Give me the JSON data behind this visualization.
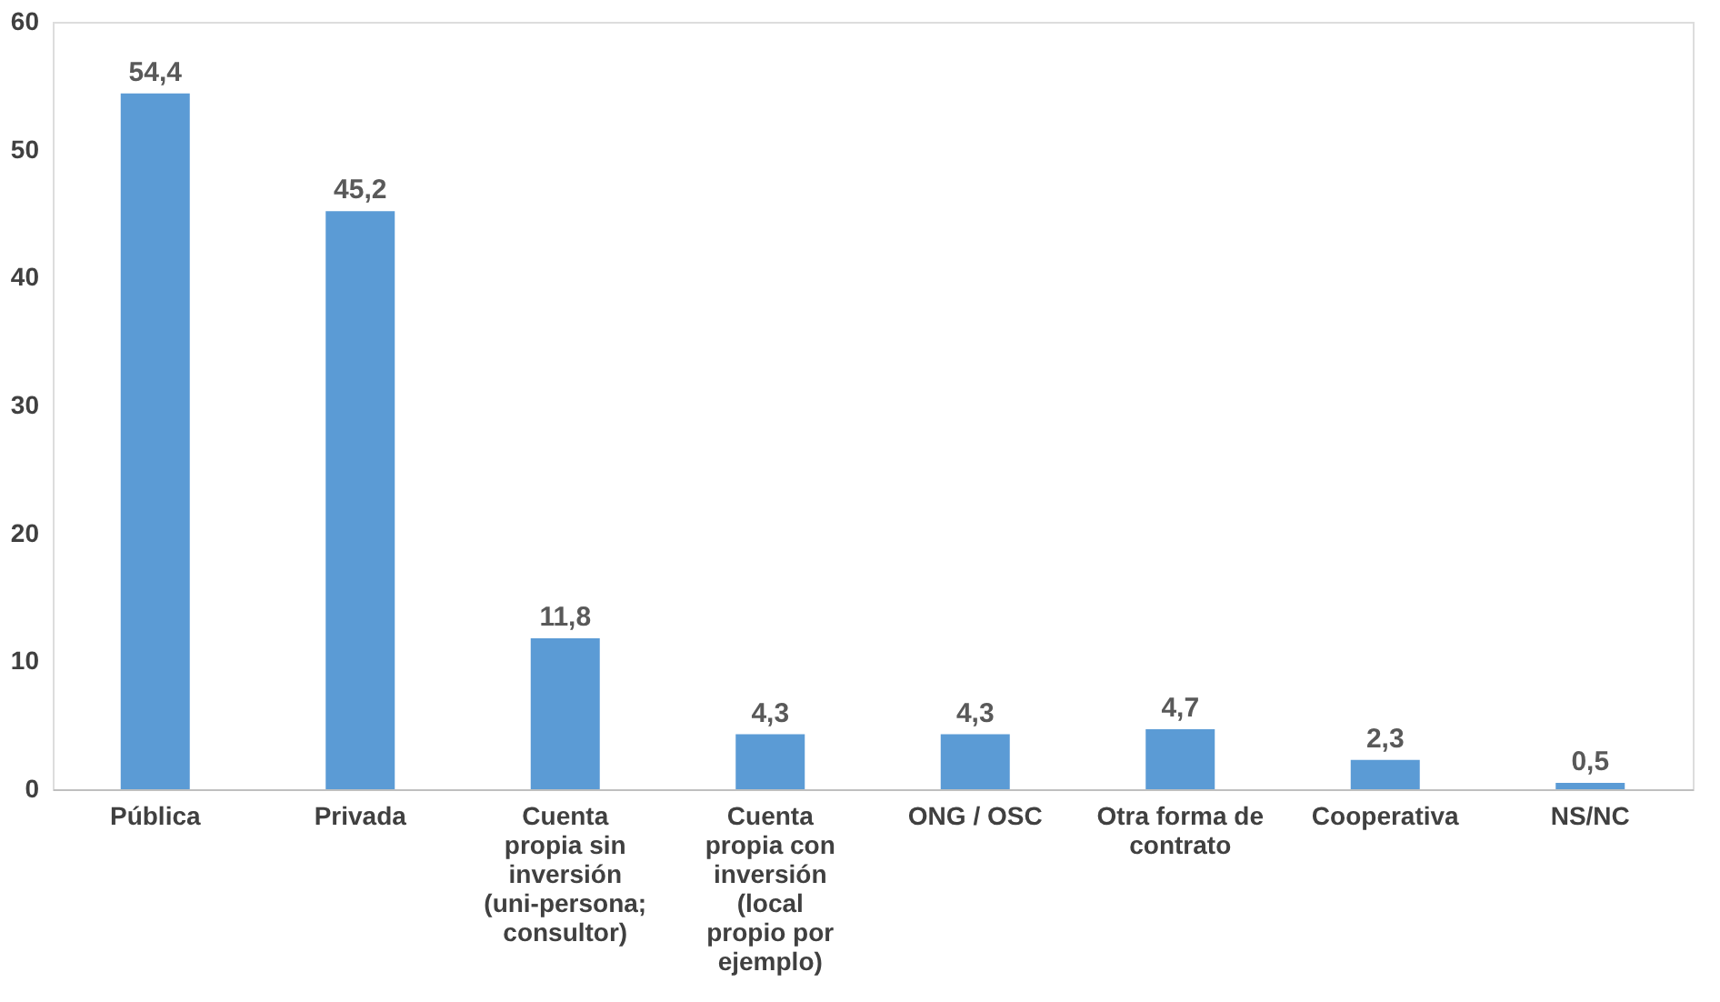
{
  "chart_data": {
    "type": "bar",
    "categories": [
      "Pública",
      "Privada",
      "Cuenta propia sin inversión (uni-persona; consultor)",
      "Cuenta propia con inversión (local propio por ejemplo)",
      "ONG / OSC",
      "Otra forma de contrato",
      "Cooperativa",
      "NS/NC"
    ],
    "values": [
      54.4,
      45.2,
      11.8,
      4.3,
      4.3,
      4.7,
      2.3,
      0.5
    ],
    "value_labels": [
      "54,4",
      "45,2",
      "11,8",
      "4,3",
      "4,3",
      "4,7",
      "2,3",
      "0,5"
    ],
    "color": "#5b9bd5",
    "ylim": [
      0,
      60
    ],
    "yticks": [
      0,
      10,
      20,
      30,
      40,
      50,
      60
    ]
  }
}
